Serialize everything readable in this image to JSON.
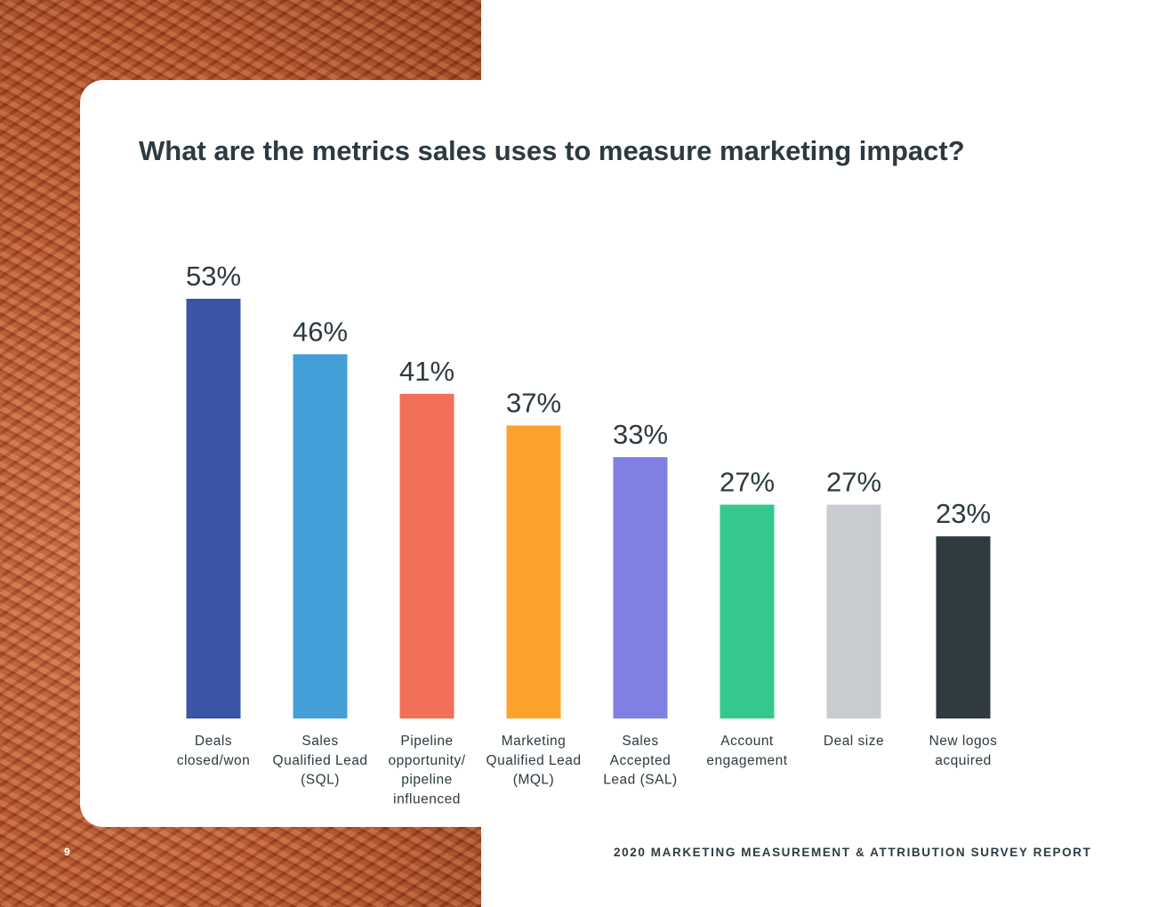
{
  "page": {
    "title": "What are the metrics sales uses to measure marketing impact?",
    "page_number": "9",
    "footer": "2020 MARKETING MEASUREMENT & ATTRIBUTION SURVEY REPORT"
  },
  "chart_data": {
    "type": "bar",
    "title": "What are the metrics sales uses to measure marketing impact?",
    "xlabel": "",
    "ylabel": "",
    "ylim": [
      0,
      53
    ],
    "grid": false,
    "categories": [
      [
        "Deals",
        "closed/won"
      ],
      [
        "Sales",
        "Qualified Lead",
        "(SQL)"
      ],
      [
        "Pipeline",
        "opportunity/",
        "pipeline",
        "influenced"
      ],
      [
        "Marketing",
        "Qualified Lead",
        "(MQL)"
      ],
      [
        "Sales",
        "Accepted",
        "Lead (SAL)"
      ],
      [
        "Account",
        "engagement"
      ],
      [
        "Deal size"
      ],
      [
        "New logos",
        "acquired"
      ]
    ],
    "values": [
      53,
      46,
      41,
      37,
      33,
      27,
      27,
      23
    ],
    "value_labels": [
      "53%",
      "46%",
      "41%",
      "37%",
      "33%",
      "27%",
      "27%",
      "23%"
    ],
    "colors": [
      "#3a55a6",
      "#449fd8",
      "#f27057",
      "#fea22e",
      "#8080e2",
      "#34c88e",
      "#c8cbd0",
      "#2f3a41"
    ]
  }
}
